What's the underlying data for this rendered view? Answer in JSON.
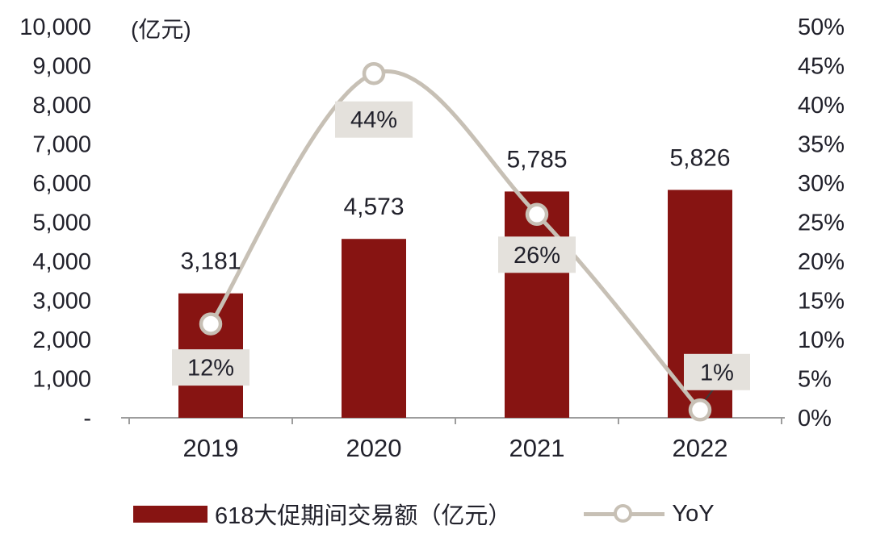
{
  "chart_data": {
    "type": "combo-bar-line",
    "title": "",
    "categories": [
      "2019",
      "2020",
      "2021",
      "2022"
    ],
    "series": [
      {
        "name": "618大促期间交易额（亿元）",
        "type": "bar",
        "axis": "left",
        "color": "#871412",
        "values": [
          3181,
          4573,
          5785,
          5826
        ],
        "value_labels": [
          "3,181",
          "4,573",
          "5,785",
          "5,826"
        ]
      },
      {
        "name": "YoY",
        "type": "line",
        "axis": "right",
        "color": "#C7C0B5",
        "marker": "circle-white",
        "values": [
          12,
          44,
          26,
          1
        ],
        "value_labels": [
          "12%",
          "44%",
          "26%",
          "1%"
        ]
      }
    ],
    "left_axis": {
      "title": "(亿元)",
      "min": 0,
      "max": 10000,
      "tick_labels": [
        "10,000",
        "9,000",
        "8,000",
        "7,000",
        "6,000",
        "5,000",
        "4,000",
        "3,000",
        "2,000",
        "1,000",
        "-"
      ]
    },
    "right_axis": {
      "min": 0,
      "max": 50,
      "tick_labels": [
        "50%",
        "45%",
        "40%",
        "35%",
        "30%",
        "25%",
        "20%",
        "15%",
        "10%",
        "5%",
        "0%"
      ]
    },
    "grid": false,
    "legend_position": "bottom",
    "colors": {
      "text": "#21212B",
      "axis_line": "#9D9D9D",
      "label_box_bg": "#E4E1DC",
      "leader_line": "#3A3A3A",
      "background": "#FFFFFF"
    }
  }
}
